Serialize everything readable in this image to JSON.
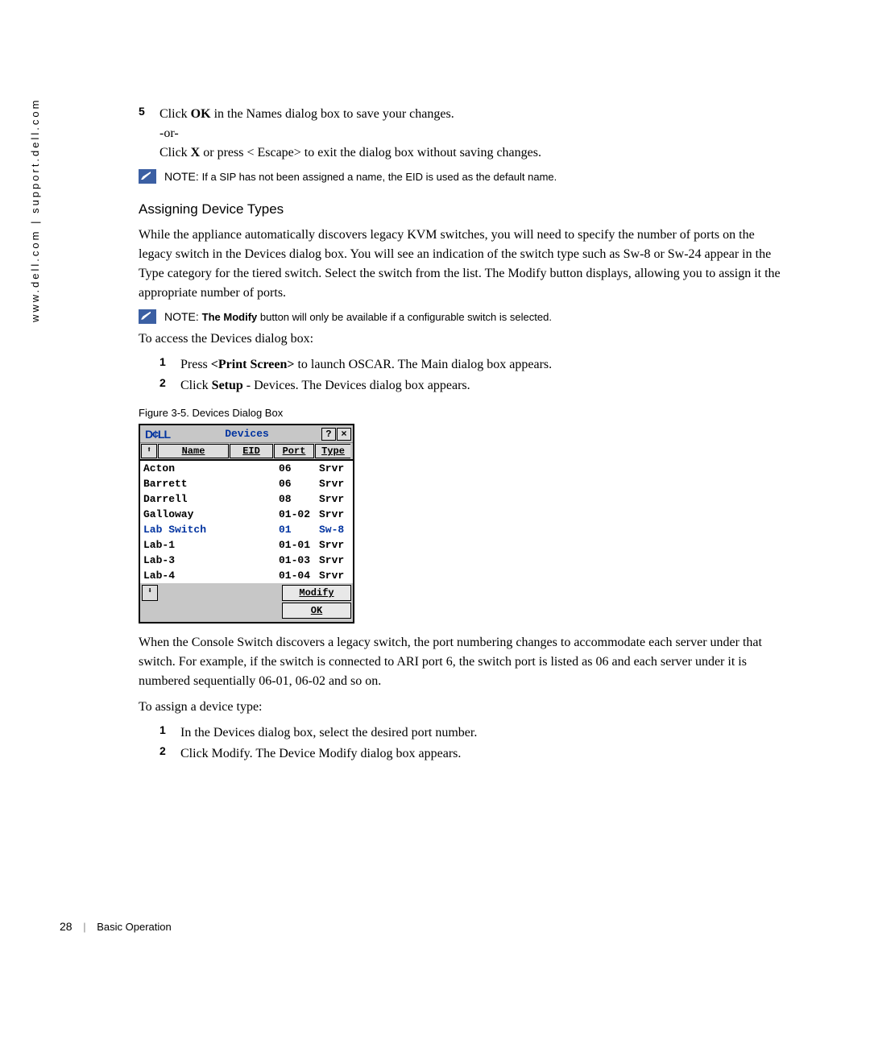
{
  "sidebar": "www.dell.com | support.dell.com",
  "step5": {
    "num": "5",
    "line1_prefix": "Click ",
    "line1_bold": "OK",
    "line1_suffix": " in the Names dialog box to save your changes.",
    "line2": "-or-",
    "line3_prefix": "Click ",
    "line3_bold": "X",
    "line3_suffix": " or press < Escape>  to exit the dialog box without saving changes."
  },
  "note1": {
    "label": "NOTE: ",
    "text": "If a SIP has not been assigned a name, the EID is used as the default name."
  },
  "heading": "Assigning Device Types",
  "para1": "While the appliance automatically discovers legacy KVM switches, you will need to specify the number of ports on the legacy switch in the Devices dialog box. You will see an indication of the switch type such as Sw-8 or Sw-24 appear in the Type category for the tiered switch. Select the switch from the list. The Modify button displays, allowing you to assign it the appropriate number of ports.",
  "note2": {
    "label": "NOTE: ",
    "bold": "The Modify",
    "text": " button will only be available if a configurable switch is selected."
  },
  "para2": "To access the Devices dialog box:",
  "steps2": {
    "s1_num": "1",
    "s1_prefix": "Press ",
    "s1_bold": "<Print Screen>",
    "s1_suffix": " to launch OSCAR. The Main dialog box appears.",
    "s2_num": "2",
    "s2_prefix": "Click ",
    "s2_bold": "Setup",
    "s2_suffix": " - Devices. The Devices dialog box appears."
  },
  "figure_caption": "Figure 3-5.    Devices Dialog Box",
  "dialog": {
    "logo": "D¢LL",
    "title": "Devices",
    "help_btn": "?",
    "close_btn": "×",
    "sort_up": "⬆",
    "sort_dn": "⬇",
    "hdr_name": "Name",
    "hdr_eid": "EID",
    "hdr_port": "Port",
    "hdr_type": "Type",
    "rows": [
      {
        "name": "Acton",
        "port": "06",
        "type": "Srvr",
        "sel": false
      },
      {
        "name": "Barrett",
        "port": "06",
        "type": "Srvr",
        "sel": false
      },
      {
        "name": "Darrell",
        "port": "08",
        "type": "Srvr",
        "sel": false
      },
      {
        "name": "Galloway",
        "port": "01-02",
        "type": "Srvr",
        "sel": false
      },
      {
        "name": "Lab Switch",
        "port": "01",
        "type": "Sw-8",
        "sel": true
      },
      {
        "name": "Lab-1",
        "port": "01-01",
        "type": "Srvr",
        "sel": false
      },
      {
        "name": "Lab-3",
        "port": "01-03",
        "type": "Srvr",
        "sel": false
      },
      {
        "name": "Lab-4",
        "port": "01-04",
        "type": "Srvr",
        "sel": false
      }
    ],
    "modify_btn": "Modify",
    "ok_btn": "OK"
  },
  "para3": "When the Console Switch discovers a legacy switch, the port numbering changes to accommodate each server under that switch. For example, if the switch is connected to ARI port 6, the switch port is listed as 06 and each server under it is numbered sequentially 06-01, 06-02 and so on.",
  "para4": "To assign a device type:",
  "steps3": {
    "s1_num": "1",
    "s1_text": "In the Devices dialog box, select the desired port number.",
    "s2_num": "2",
    "s2_text": "Click Modify. The Device Modify dialog box appears."
  },
  "footer": {
    "page": "28",
    "section": "Basic Operation"
  }
}
